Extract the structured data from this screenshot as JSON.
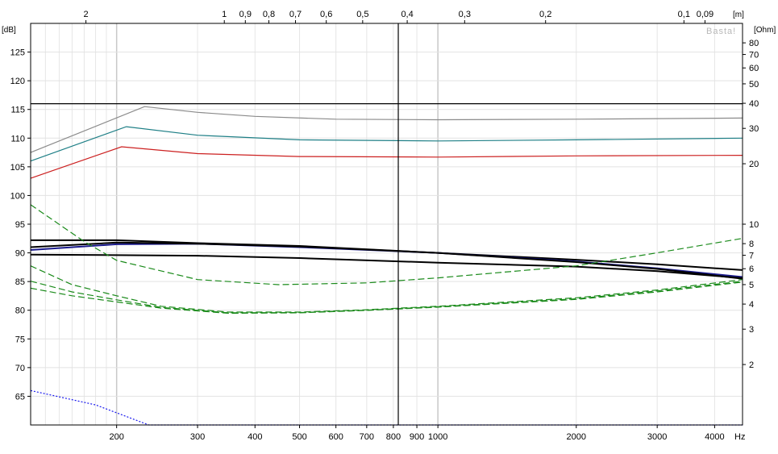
{
  "chart_data": {
    "type": "line",
    "title": "",
    "brand": "Basta!",
    "x_axis": {
      "scale": "log",
      "unit": "Hz",
      "range": [
        130,
        4600
      ],
      "tick_labels": [
        200,
        300,
        400,
        500,
        600,
        700,
        800,
        900,
        1000,
        2000,
        3000,
        4000
      ]
    },
    "top_axis": {
      "unit": "[m]",
      "scale": "wavelength",
      "tick_labels": [
        "2",
        "1",
        "0,9",
        "0,8",
        "0,7",
        "0,6",
        "0,5",
        "0,4",
        "0,3",
        "0,2",
        "0,1",
        "0,09"
      ],
      "tick_values": [
        2,
        1,
        0.9,
        0.8,
        0.7,
        0.6,
        0.5,
        0.4,
        0.3,
        0.2,
        0.1,
        0.09
      ]
    },
    "y_left": {
      "unit": "[dB]",
      "range": [
        60,
        130
      ],
      "tick_labels": [
        65,
        70,
        75,
        80,
        85,
        90,
        95,
        100,
        105,
        110,
        115,
        120,
        125
      ]
    },
    "y_right": {
      "unit": "[Ohm]",
      "scale": "log",
      "range": [
        1,
        100
      ],
      "tick_labels": [
        2,
        3,
        4,
        5,
        6,
        7,
        8,
        10,
        20,
        30,
        40,
        50,
        60,
        70,
        80
      ]
    },
    "reference_lines": {
      "horizontal_db": 116,
      "vertical_hz": 820
    },
    "grid": true,
    "colors": {
      "gray": "#8a8a8a",
      "teal": "#1e7f86",
      "red": "#cc2020",
      "black": "#000000",
      "navy": "#1a1a8c",
      "green": "#1a8a1a",
      "blue": "#1a1aee"
    },
    "series": [
      {
        "color": "gray",
        "axis": "left",
        "width": 1.2,
        "dash": "",
        "points": [
          [
            130,
            107.5
          ],
          [
            230,
            115.5
          ],
          [
            300,
            114.5
          ],
          [
            400,
            113.8
          ],
          [
            600,
            113.3
          ],
          [
            1000,
            113.2
          ],
          [
            2000,
            113.3
          ],
          [
            4600,
            113.5
          ]
        ]
      },
      {
        "color": "teal",
        "axis": "left",
        "width": 1.2,
        "dash": "",
        "points": [
          [
            130,
            106
          ],
          [
            210,
            112
          ],
          [
            300,
            110.5
          ],
          [
            500,
            109.7
          ],
          [
            1000,
            109.5
          ],
          [
            2000,
            109.7
          ],
          [
            4600,
            110
          ]
        ]
      },
      {
        "color": "red",
        "axis": "left",
        "width": 1.2,
        "dash": "",
        "points": [
          [
            130,
            103
          ],
          [
            205,
            108.5
          ],
          [
            300,
            107.3
          ],
          [
            500,
            106.8
          ],
          [
            1000,
            106.7
          ],
          [
            2000,
            106.9
          ],
          [
            4600,
            107
          ]
        ]
      },
      {
        "color": "black",
        "axis": "left",
        "width": 2,
        "dash": "",
        "points": [
          [
            130,
            92.2
          ],
          [
            200,
            92.2
          ],
          [
            300,
            91.7
          ],
          [
            500,
            91.2
          ],
          [
            1000,
            90
          ],
          [
            2000,
            88.8
          ],
          [
            3000,
            88
          ],
          [
            4600,
            87
          ]
        ]
      },
      {
        "color": "navy",
        "axis": "left",
        "width": 2,
        "dash": "",
        "points": [
          [
            130,
            90.5
          ],
          [
            200,
            91.5
          ],
          [
            300,
            91.6
          ],
          [
            500,
            91
          ],
          [
            1000,
            90
          ],
          [
            2000,
            88.5
          ],
          [
            3000,
            87.3
          ],
          [
            4600,
            85.8
          ]
        ]
      },
      {
        "color": "black",
        "axis": "left",
        "width": 2,
        "dash": "",
        "points": [
          [
            130,
            91
          ],
          [
            200,
            91.8
          ],
          [
            300,
            91.6
          ],
          [
            500,
            91.1
          ],
          [
            1000,
            90
          ],
          [
            2000,
            88.4
          ],
          [
            3000,
            87.2
          ],
          [
            4600,
            85.5
          ]
        ]
      },
      {
        "color": "black",
        "axis": "left",
        "width": 2,
        "dash": "",
        "points": [
          [
            130,
            89.7
          ],
          [
            300,
            89.5
          ],
          [
            500,
            89.1
          ],
          [
            1000,
            88.3
          ],
          [
            2000,
            87.6
          ],
          [
            3000,
            86.8
          ],
          [
            4600,
            85.6
          ]
        ]
      },
      {
        "color": "green",
        "axis": "right",
        "width": 1.2,
        "dash": "8,4",
        "points": [
          [
            130,
            12.5
          ],
          [
            170,
            8.2
          ],
          [
            200,
            6.6
          ],
          [
            300,
            5.3
          ],
          [
            450,
            5.0
          ],
          [
            700,
            5.1
          ],
          [
            1000,
            5.4
          ],
          [
            2000,
            6.2
          ],
          [
            3000,
            7.2
          ],
          [
            4600,
            8.5
          ]
        ]
      },
      {
        "color": "green",
        "axis": "right",
        "width": 1.2,
        "dash": "8,4",
        "points": [
          [
            130,
            6.2
          ],
          [
            160,
            5
          ],
          [
            200,
            4.4
          ],
          [
            250,
            3.9
          ],
          [
            350,
            3.65
          ],
          [
            500,
            3.65
          ],
          [
            700,
            3.75
          ],
          [
            1000,
            3.9
          ],
          [
            2000,
            4.3
          ],
          [
            3000,
            4.7
          ],
          [
            4600,
            5.3
          ]
        ]
      },
      {
        "color": "green",
        "axis": "right",
        "width": 1.2,
        "dash": "8,4",
        "points": [
          [
            130,
            5.2
          ],
          [
            160,
            4.6
          ],
          [
            200,
            4.2
          ],
          [
            250,
            3.85
          ],
          [
            350,
            3.62
          ],
          [
            500,
            3.63
          ],
          [
            700,
            3.73
          ],
          [
            1000,
            3.88
          ],
          [
            2000,
            4.25
          ],
          [
            3000,
            4.65
          ],
          [
            4600,
            5.2
          ]
        ]
      },
      {
        "color": "green",
        "axis": "right",
        "width": 1.2,
        "dash": "8,4",
        "points": [
          [
            130,
            4.8
          ],
          [
            160,
            4.4
          ],
          [
            200,
            4.1
          ],
          [
            250,
            3.82
          ],
          [
            350,
            3.6
          ],
          [
            500,
            3.62
          ],
          [
            700,
            3.72
          ],
          [
            1000,
            3.86
          ],
          [
            2000,
            4.22
          ],
          [
            3000,
            4.6
          ],
          [
            4600,
            5.15
          ]
        ]
      },
      {
        "color": "blue",
        "axis": "left",
        "width": 1.2,
        "dash": "2,2",
        "points": [
          [
            130,
            66
          ],
          [
            180,
            63.5
          ],
          [
            235,
            60
          ],
          [
            4600,
            60
          ]
        ]
      }
    ]
  }
}
